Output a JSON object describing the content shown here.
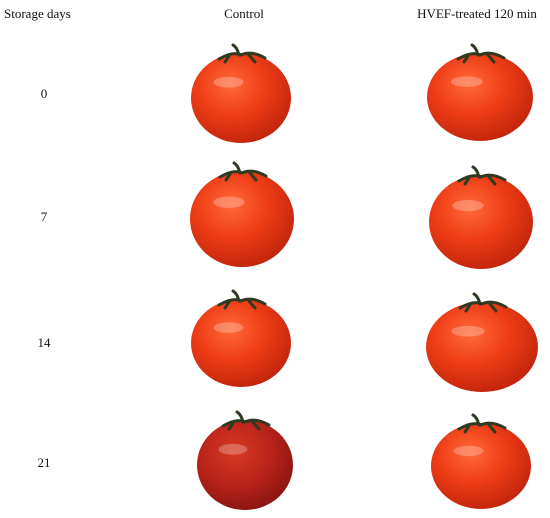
{
  "header": {
    "columns": [
      "Storage days",
      "Control",
      "HVEF-treated 120 min"
    ]
  },
  "rows": [
    {
      "day": 0
    },
    {
      "day": 7
    },
    {
      "day": 14
    },
    {
      "day": 21
    }
  ]
}
